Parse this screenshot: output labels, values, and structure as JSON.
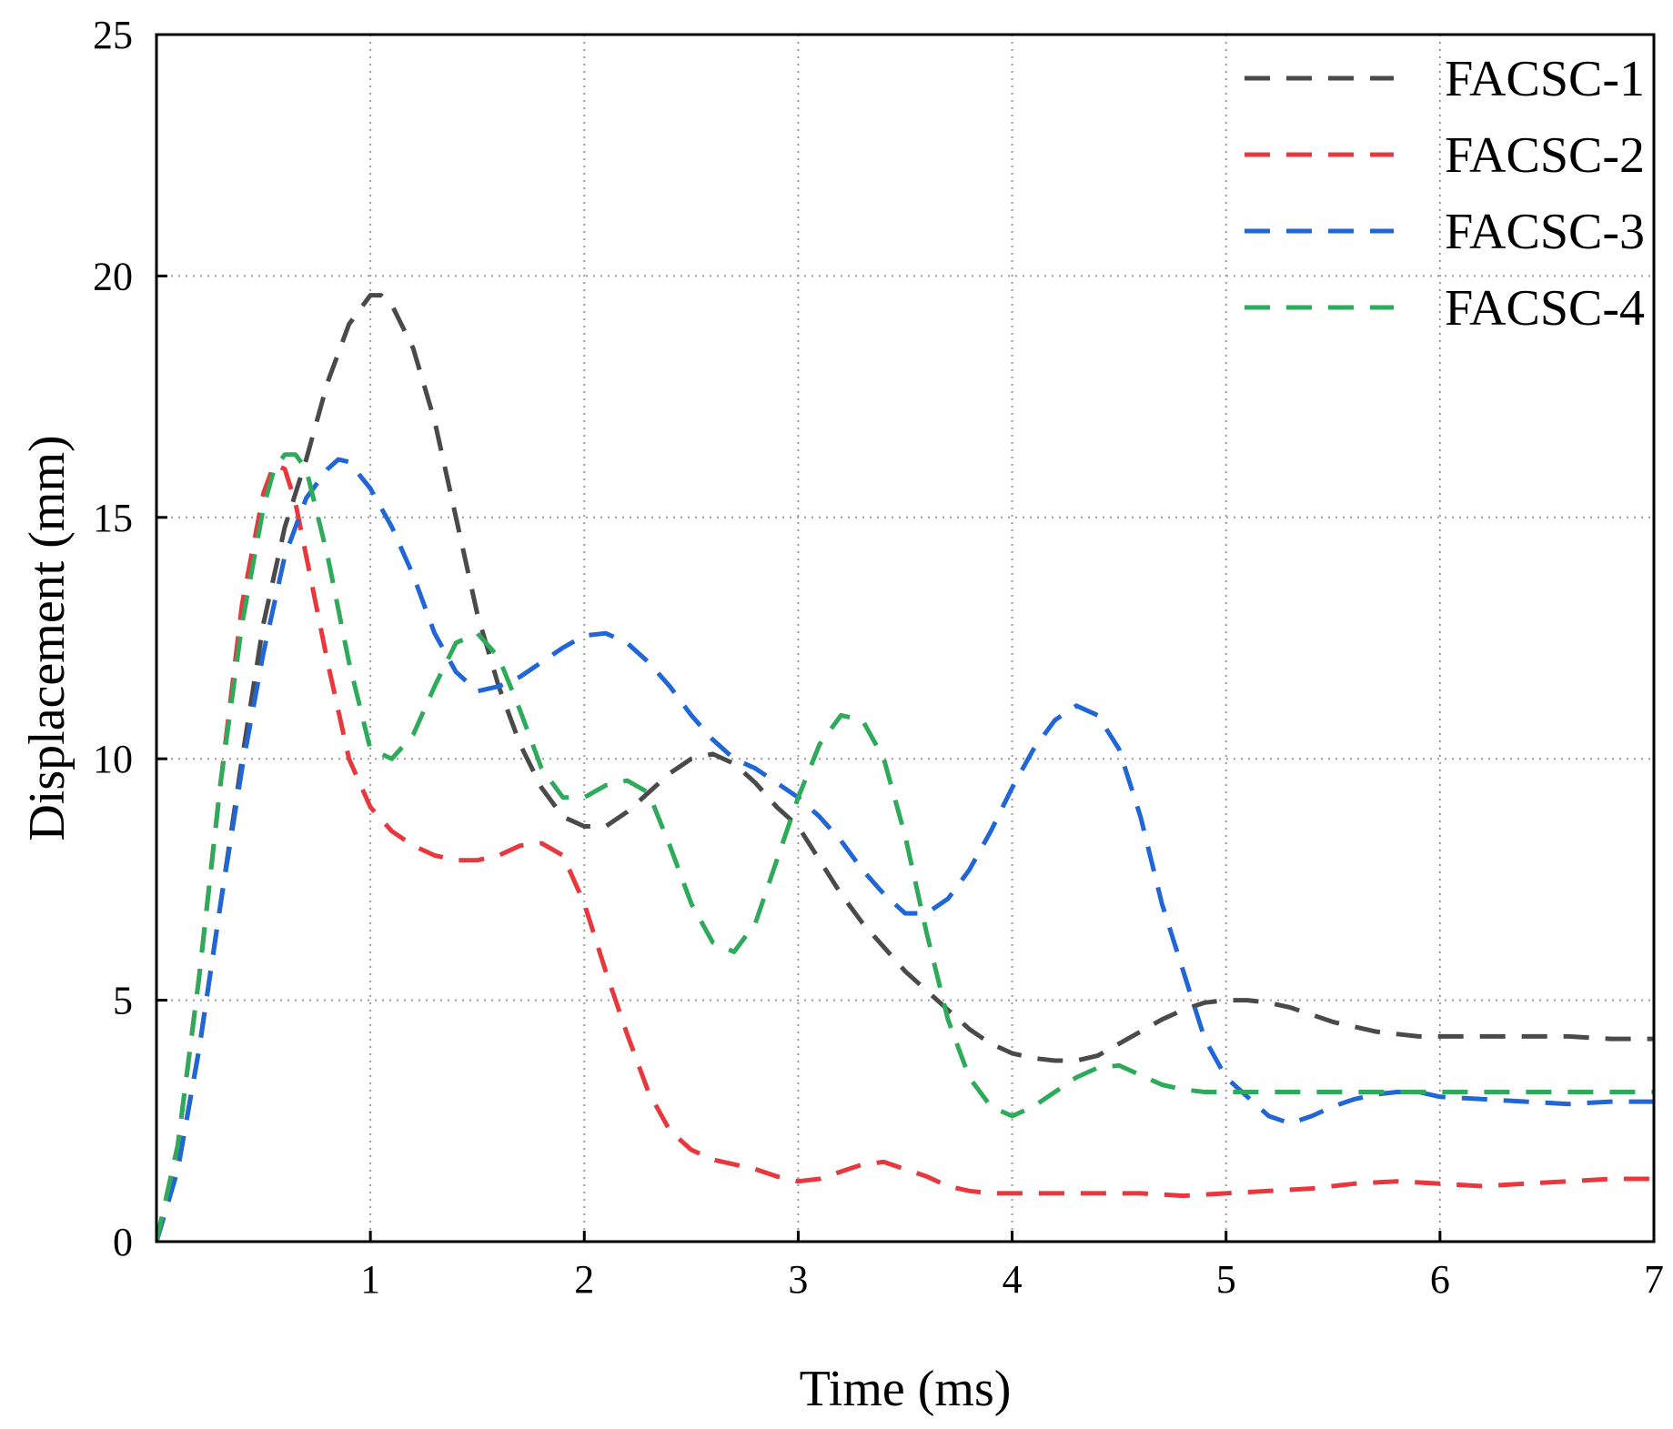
{
  "chart_data": {
    "type": "line",
    "title": "",
    "xlabel": "Time (ms)",
    "ylabel": "Displacement (mm)",
    "xlim": [
      0,
      7
    ],
    "ylim": [
      0,
      25
    ],
    "xticks": [
      1,
      2,
      3,
      4,
      5,
      6,
      7
    ],
    "yticks": [
      0,
      5,
      10,
      15,
      20,
      25
    ],
    "grid": true,
    "legend_position": "top-right",
    "series": [
      {
        "name": "FACSC-1",
        "color": "#4a4a4a",
        "points": [
          [
            0,
            0
          ],
          [
            0.1,
            1.5
          ],
          [
            0.2,
            4
          ],
          [
            0.3,
            7
          ],
          [
            0.4,
            10
          ],
          [
            0.5,
            12.8
          ],
          [
            0.6,
            14.8
          ],
          [
            0.7,
            16.2
          ],
          [
            0.8,
            17.8
          ],
          [
            0.9,
            19
          ],
          [
            1.0,
            19.6
          ],
          [
            1.05,
            19.6
          ],
          [
            1.1,
            19.4
          ],
          [
            1.2,
            18.5
          ],
          [
            1.3,
            17
          ],
          [
            1.4,
            15
          ],
          [
            1.5,
            13
          ],
          [
            1.6,
            11.5
          ],
          [
            1.7,
            10.3
          ],
          [
            1.8,
            9.4
          ],
          [
            1.9,
            8.8
          ],
          [
            2.0,
            8.6
          ],
          [
            2.1,
            8.6
          ],
          [
            2.2,
            8.9
          ],
          [
            2.3,
            9.3
          ],
          [
            2.4,
            9.7
          ],
          [
            2.5,
            10.0
          ],
          [
            2.6,
            10.1
          ],
          [
            2.7,
            9.9
          ],
          [
            2.8,
            9.5
          ],
          [
            2.9,
            9.0
          ],
          [
            3.0,
            8.6
          ],
          [
            3.1,
            7.9
          ],
          [
            3.2,
            7.2
          ],
          [
            3.3,
            6.6
          ],
          [
            3.4,
            6.1
          ],
          [
            3.5,
            5.6
          ],
          [
            3.6,
            5.2
          ],
          [
            3.7,
            4.8
          ],
          [
            3.8,
            4.4
          ],
          [
            3.9,
            4.1
          ],
          [
            4.0,
            3.9
          ],
          [
            4.1,
            3.8
          ],
          [
            4.2,
            3.75
          ],
          [
            4.3,
            3.75
          ],
          [
            4.4,
            3.85
          ],
          [
            4.5,
            4.1
          ],
          [
            4.6,
            4.35
          ],
          [
            4.7,
            4.6
          ],
          [
            4.8,
            4.8
          ],
          [
            4.9,
            4.95
          ],
          [
            5.0,
            5.0
          ],
          [
            5.1,
            5.0
          ],
          [
            5.2,
            4.95
          ],
          [
            5.3,
            4.85
          ],
          [
            5.4,
            4.7
          ],
          [
            5.5,
            4.55
          ],
          [
            5.6,
            4.45
          ],
          [
            5.7,
            4.35
          ],
          [
            5.8,
            4.3
          ],
          [
            5.9,
            4.25
          ],
          [
            6.0,
            4.25
          ],
          [
            6.2,
            4.25
          ],
          [
            6.4,
            4.25
          ],
          [
            6.6,
            4.25
          ],
          [
            6.8,
            4.2
          ],
          [
            7.0,
            4.2
          ]
        ]
      },
      {
        "name": "FACSC-2",
        "color": "#e8383d",
        "points": [
          [
            0,
            0
          ],
          [
            0.1,
            2
          ],
          [
            0.2,
            5.5
          ],
          [
            0.3,
            9.5
          ],
          [
            0.4,
            13.2
          ],
          [
            0.5,
            15.5
          ],
          [
            0.55,
            16.1
          ],
          [
            0.6,
            16.0
          ],
          [
            0.65,
            15.3
          ],
          [
            0.7,
            14.2
          ],
          [
            0.8,
            12
          ],
          [
            0.9,
            10
          ],
          [
            1.0,
            9
          ],
          [
            1.1,
            8.5
          ],
          [
            1.2,
            8.2
          ],
          [
            1.3,
            8.0
          ],
          [
            1.4,
            7.9
          ],
          [
            1.5,
            7.9
          ],
          [
            1.6,
            8.0
          ],
          [
            1.7,
            8.2
          ],
          [
            1.8,
            8.25
          ],
          [
            1.9,
            8.0
          ],
          [
            2.0,
            7.0
          ],
          [
            2.1,
            5.6
          ],
          [
            2.2,
            4.3
          ],
          [
            2.3,
            3.1
          ],
          [
            2.4,
            2.3
          ],
          [
            2.5,
            1.9
          ],
          [
            2.6,
            1.7
          ],
          [
            2.7,
            1.6
          ],
          [
            2.8,
            1.5
          ],
          [
            2.9,
            1.35
          ],
          [
            3.0,
            1.25
          ],
          [
            3.1,
            1.3
          ],
          [
            3.2,
            1.45
          ],
          [
            3.3,
            1.6
          ],
          [
            3.4,
            1.65
          ],
          [
            3.5,
            1.5
          ],
          [
            3.6,
            1.35
          ],
          [
            3.7,
            1.15
          ],
          [
            3.8,
            1.05
          ],
          [
            3.9,
            1.0
          ],
          [
            4.0,
            1.0
          ],
          [
            4.2,
            1.0
          ],
          [
            4.4,
            1.0
          ],
          [
            4.6,
            1.0
          ],
          [
            4.8,
            0.95
          ],
          [
            5.0,
            1.0
          ],
          [
            5.2,
            1.05
          ],
          [
            5.4,
            1.1
          ],
          [
            5.6,
            1.2
          ],
          [
            5.8,
            1.25
          ],
          [
            6.0,
            1.2
          ],
          [
            6.2,
            1.15
          ],
          [
            6.4,
            1.2
          ],
          [
            6.6,
            1.25
          ],
          [
            6.8,
            1.3
          ],
          [
            7.0,
            1.3
          ]
        ]
      },
      {
        "name": "FACSC-3",
        "color": "#2066d6",
        "points": [
          [
            0,
            0
          ],
          [
            0.1,
            1.5
          ],
          [
            0.2,
            4
          ],
          [
            0.3,
            7
          ],
          [
            0.4,
            9.8
          ],
          [
            0.5,
            12.2
          ],
          [
            0.6,
            14.2
          ],
          [
            0.7,
            15.4
          ],
          [
            0.8,
            16.0
          ],
          [
            0.85,
            16.2
          ],
          [
            0.9,
            16.15
          ],
          [
            1.0,
            15.6
          ],
          [
            1.1,
            14.8
          ],
          [
            1.2,
            13.8
          ],
          [
            1.3,
            12.6
          ],
          [
            1.4,
            11.8
          ],
          [
            1.5,
            11.4
          ],
          [
            1.6,
            11.5
          ],
          [
            1.7,
            11.7
          ],
          [
            1.8,
            12.0
          ],
          [
            1.9,
            12.3
          ],
          [
            2.0,
            12.55
          ],
          [
            2.1,
            12.6
          ],
          [
            2.2,
            12.4
          ],
          [
            2.3,
            12.0
          ],
          [
            2.4,
            11.5
          ],
          [
            2.5,
            10.9
          ],
          [
            2.6,
            10.4
          ],
          [
            2.7,
            10.0
          ],
          [
            2.8,
            9.8
          ],
          [
            2.9,
            9.5
          ],
          [
            3.0,
            9.2
          ],
          [
            3.1,
            8.8
          ],
          [
            3.2,
            8.3
          ],
          [
            3.3,
            7.7
          ],
          [
            3.4,
            7.2
          ],
          [
            3.5,
            6.8
          ],
          [
            3.6,
            6.8
          ],
          [
            3.7,
            7.1
          ],
          [
            3.8,
            7.7
          ],
          [
            3.9,
            8.5
          ],
          [
            4.0,
            9.4
          ],
          [
            4.1,
            10.2
          ],
          [
            4.2,
            10.8
          ],
          [
            4.3,
            11.1
          ],
          [
            4.4,
            10.9
          ],
          [
            4.5,
            10.2
          ],
          [
            4.6,
            8.8
          ],
          [
            4.7,
            7.0
          ],
          [
            4.8,
            5.6
          ],
          [
            4.9,
            4.2
          ],
          [
            5.0,
            3.4
          ],
          [
            5.1,
            3.0
          ],
          [
            5.2,
            2.6
          ],
          [
            5.3,
            2.45
          ],
          [
            5.4,
            2.6
          ],
          [
            5.5,
            2.8
          ],
          [
            5.6,
            2.95
          ],
          [
            5.7,
            3.05
          ],
          [
            5.8,
            3.1
          ],
          [
            5.9,
            3.1
          ],
          [
            6.0,
            3.0
          ],
          [
            6.2,
            2.95
          ],
          [
            6.4,
            2.9
          ],
          [
            6.6,
            2.85
          ],
          [
            6.8,
            2.9
          ],
          [
            7.0,
            2.9
          ]
        ]
      },
      {
        "name": "FACSC-4",
        "color": "#2eab5a",
        "points": [
          [
            0,
            0
          ],
          [
            0.1,
            2
          ],
          [
            0.2,
            5.5
          ],
          [
            0.3,
            9.5
          ],
          [
            0.4,
            12.8
          ],
          [
            0.5,
            15.2
          ],
          [
            0.55,
            16.0
          ],
          [
            0.6,
            16.3
          ],
          [
            0.65,
            16.3
          ],
          [
            0.7,
            16.0
          ],
          [
            0.8,
            14.2
          ],
          [
            0.9,
            12.0
          ],
          [
            1.0,
            10.2
          ],
          [
            1.1,
            10.0
          ],
          [
            1.2,
            10.5
          ],
          [
            1.3,
            11.5
          ],
          [
            1.4,
            12.4
          ],
          [
            1.5,
            12.6
          ],
          [
            1.6,
            12.1
          ],
          [
            1.7,
            11.0
          ],
          [
            1.8,
            9.8
          ],
          [
            1.9,
            9.2
          ],
          [
            2.0,
            9.2
          ],
          [
            2.1,
            9.45
          ],
          [
            2.2,
            9.55
          ],
          [
            2.3,
            9.3
          ],
          [
            2.4,
            8.2
          ],
          [
            2.5,
            7.0
          ],
          [
            2.6,
            6.2
          ],
          [
            2.7,
            6.0
          ],
          [
            2.8,
            6.6
          ],
          [
            2.9,
            7.9
          ],
          [
            3.0,
            9.2
          ],
          [
            3.1,
            10.3
          ],
          [
            3.2,
            10.9
          ],
          [
            3.3,
            10.8
          ],
          [
            3.4,
            10.0
          ],
          [
            3.5,
            8.4
          ],
          [
            3.6,
            6.4
          ],
          [
            3.7,
            4.6
          ],
          [
            3.8,
            3.4
          ],
          [
            3.9,
            2.8
          ],
          [
            4.0,
            2.6
          ],
          [
            4.1,
            2.8
          ],
          [
            4.2,
            3.1
          ],
          [
            4.3,
            3.4
          ],
          [
            4.4,
            3.6
          ],
          [
            4.5,
            3.65
          ],
          [
            4.6,
            3.45
          ],
          [
            4.7,
            3.25
          ],
          [
            4.8,
            3.15
          ],
          [
            4.9,
            3.1
          ],
          [
            5.0,
            3.1
          ],
          [
            5.2,
            3.1
          ],
          [
            5.4,
            3.1
          ],
          [
            5.6,
            3.1
          ],
          [
            5.8,
            3.1
          ],
          [
            6.0,
            3.1
          ],
          [
            6.2,
            3.1
          ],
          [
            6.4,
            3.1
          ],
          [
            6.6,
            3.1
          ],
          [
            6.8,
            3.1
          ],
          [
            7.0,
            3.1
          ]
        ]
      }
    ]
  }
}
